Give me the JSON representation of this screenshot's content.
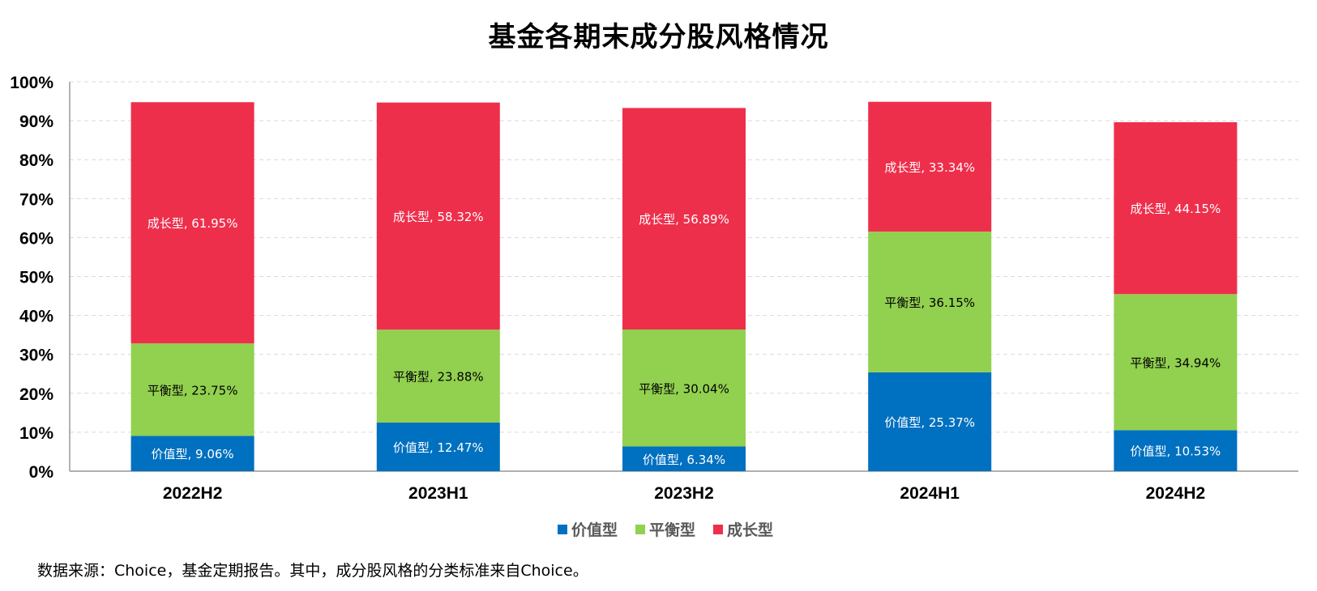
{
  "chart_data": {
    "type": "bar",
    "stacked": true,
    "title": "基金各期末成分股风格情况",
    "categories": [
      "2022H2",
      "2023H1",
      "2023H2",
      "2024H1",
      "2024H2"
    ],
    "series": [
      {
        "name": "价值型",
        "color": "#0070C0",
        "label_color": "#ffffff",
        "values": [
          9.06,
          12.47,
          6.34,
          25.37,
          10.53
        ],
        "labels": [
          "价值型, 9.06%",
          "价值型, 12.47%",
          "价值型, 6.34%",
          "价值型, 25.37%",
          "价值型, 10.53%"
        ]
      },
      {
        "name": "平衡型",
        "color": "#92D050",
        "label_color": "#000000",
        "values": [
          23.75,
          23.88,
          30.04,
          36.15,
          34.94
        ],
        "labels": [
          "平衡型, 23.75%",
          "平衡型, 23.88%",
          "平衡型, 30.04%",
          "平衡型, 36.15%",
          "平衡型, 34.94%"
        ]
      },
      {
        "name": "成长型",
        "color": "#EE2F4C",
        "label_color": "#ffffff",
        "values": [
          61.95,
          58.32,
          56.89,
          33.34,
          44.15
        ],
        "labels": [
          "成长型, 61.95%",
          "成长型, 58.32%",
          "成长型, 56.89%",
          "成长型, 33.34%",
          "成长型, 44.15%"
        ]
      }
    ],
    "ylim": [
      0,
      100
    ],
    "y_ticks": [
      "0%",
      "10%",
      "20%",
      "30%",
      "40%",
      "50%",
      "60%",
      "70%",
      "80%",
      "90%",
      "100%"
    ],
    "grid": true,
    "legend_position": "bottom"
  },
  "footnote": "数据来源：Choice，基金定期报告。其中，成分股风格的分类标准来自Choice。"
}
